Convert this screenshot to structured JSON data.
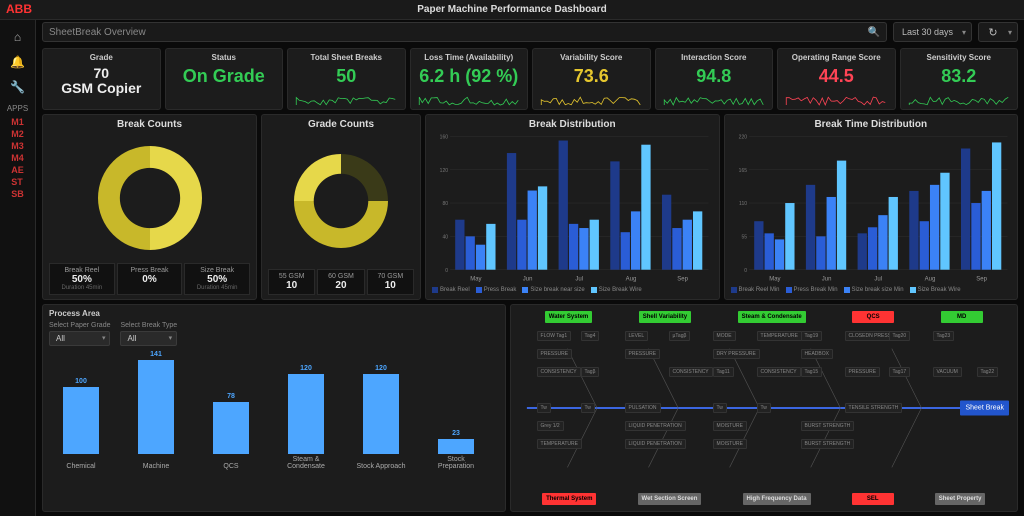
{
  "app": {
    "logo": "ABB",
    "title": "Paper Machine Performance Dashboard",
    "search_text": "SheetBreak Overview",
    "date_range": "Last 30 days",
    "refresh_icon": "↻"
  },
  "sidebar": {
    "icons": [
      {
        "name": "home-icon",
        "glyph": "⌂"
      },
      {
        "name": "bell-icon",
        "glyph": "🔔"
      },
      {
        "name": "wrench-icon",
        "glyph": "🔧"
      }
    ],
    "apps_label": "APPS",
    "apps": [
      "M1",
      "M2",
      "M3",
      "M4",
      "AE",
      "ST",
      "SB"
    ]
  },
  "kpis": [
    {
      "title": "Grade",
      "value": "70 GSM Copier",
      "color": "#eeeeee",
      "spark": null,
      "big": false
    },
    {
      "title": "Status",
      "value": "On Grade",
      "color": "#33cc55",
      "spark": null,
      "big": true
    },
    {
      "title": "Total Sheet Breaks",
      "value": "50",
      "color": "#33cc55",
      "spark": {
        "color": "#33cc55"
      },
      "big": true
    },
    {
      "title": "Loss Time (Availability)",
      "value": "6.2 h (92 %)",
      "color": "#33cc55",
      "spark": {
        "color": "#33cc55"
      },
      "big": true
    },
    {
      "title": "Variability Score",
      "value": "73.6",
      "color": "#e6c72e",
      "spark": {
        "color": "#e6c72e"
      },
      "big": true
    },
    {
      "title": "Interaction Score",
      "value": "94.8",
      "color": "#33cc55",
      "spark": {
        "color": "#33cc55"
      },
      "big": true
    },
    {
      "title": "Operating Range Score",
      "value": "44.5",
      "color": "#ff4455",
      "spark": {
        "color": "#ff4455"
      },
      "big": true
    },
    {
      "title": "Sensitivity Score",
      "value": "83.2",
      "color": "#33cc55",
      "spark": {
        "color": "#33cc55"
      },
      "big": true
    }
  ],
  "break_counts": {
    "title": "Break Counts",
    "donut": {
      "segments": [
        {
          "label": "Break Reel",
          "value": 50,
          "color": "#e6d84a"
        },
        {
          "label": "Press Break",
          "value": 0,
          "color": "#5a5a2a"
        },
        {
          "label": "Size Break",
          "value": 50,
          "color": "#c8b82a"
        }
      ],
      "inner_ratio": 0.58
    },
    "legend": [
      {
        "lbl": "Break Reel",
        "val": "50%",
        "sub": "Duration 45min"
      },
      {
        "lbl": "Press Break",
        "val": "0%",
        "sub": ""
      },
      {
        "lbl": "Size Break",
        "val": "50%",
        "sub": "Duration 45min"
      }
    ]
  },
  "grade_counts": {
    "title": "Grade Counts",
    "donut": {
      "segments": [
        {
          "label": "55 GSM",
          "value": 10,
          "color": "#3a3a18"
        },
        {
          "label": "60 GSM",
          "value": 20,
          "color": "#c8b82a"
        },
        {
          "label": "70 GSM",
          "value": 10,
          "color": "#e6d84a"
        }
      ],
      "inner_ratio": 0.58
    },
    "legend": [
      {
        "lbl": "55 GSM",
        "val": "10",
        "sub": ""
      },
      {
        "lbl": "60 GSM",
        "val": "20",
        "sub": ""
      },
      {
        "lbl": "70 GSM",
        "val": "10",
        "sub": ""
      }
    ]
  },
  "break_dist": {
    "title": "Break Distribution",
    "categories": [
      "May",
      "Jun",
      "Jul",
      "Aug",
      "Sep"
    ],
    "series_colors": [
      "#1e3a8a",
      "#2a5dd6",
      "#3b82f6",
      "#60c6ff"
    ],
    "series_names": [
      "Break Reel",
      "Press Break",
      "Size break near size",
      "Size Break Wire"
    ],
    "ylim": [
      0,
      160
    ],
    "data": [
      [
        60,
        40,
        30,
        55
      ],
      [
        140,
        60,
        95,
        100
      ],
      [
        155,
        55,
        50,
        60
      ],
      [
        130,
        45,
        70,
        150
      ],
      [
        90,
        50,
        60,
        70
      ]
    ]
  },
  "break_time_dist": {
    "title": "Break Time Distribution",
    "categories": [
      "May",
      "Jun",
      "Jul",
      "Aug",
      "Sep"
    ],
    "series_colors": [
      "#1e3a8a",
      "#2a5dd6",
      "#3b82f6",
      "#60c6ff"
    ],
    "series_names": [
      "Break Reel Min",
      "Press Break Min",
      "Size break size Min",
      "Size Break Wire"
    ],
    "ylim": [
      0,
      220
    ],
    "data": [
      [
        80,
        60,
        50,
        110
      ],
      [
        140,
        55,
        120,
        180
      ],
      [
        60,
        70,
        90,
        120
      ],
      [
        130,
        80,
        140,
        160
      ],
      [
        200,
        110,
        130,
        210
      ]
    ]
  },
  "process_area": {
    "title": "Process Area",
    "filters": [
      {
        "label": "Select Paper Grade",
        "value": "All"
      },
      {
        "label": "Select Break Type",
        "value": "All"
      }
    ],
    "chart": {
      "color": "#4da6ff",
      "categories": [
        "Chemical",
        "Machine",
        "QCS",
        "Steam & Condensate",
        "Stock Approach",
        "Stock Preparation"
      ],
      "values": [
        100,
        141,
        78,
        120,
        120,
        23
      ],
      "ylim": [
        0,
        150
      ]
    }
  },
  "fishbone": {
    "top_heads": [
      {
        "label": "Water System",
        "color": "#33cc33"
      },
      {
        "label": "Shell Variability",
        "color": "#33cc33"
      },
      {
        "label": "Steam & Condensate",
        "color": "#33cc33"
      },
      {
        "label": "QCS",
        "color": "#ff3333"
      },
      {
        "label": "MD",
        "color": "#33cc33"
      }
    ],
    "bottom_heads": [
      {
        "label": "Thermal System",
        "color": "#ff3333"
      },
      {
        "label": "Wet Section Screen",
        "color": "#666666"
      },
      {
        "label": "High Frequency Data",
        "color": "#666666"
      },
      {
        "label": "SEL",
        "color": "#ff3333"
      },
      {
        "label": "Sheet Property",
        "color": "#666666"
      }
    ],
    "spine_color": "#3b66e0",
    "output": "Sheet Break",
    "nodes_top": [
      [
        "FLOW Tag1",
        "Tag4",
        "LEVEL",
        "µTagβ",
        "MODE",
        "TEMPERATURE",
        "Tag19",
        "CLOSEDN PRESS",
        "Tag20",
        "Tag23"
      ],
      [
        "PRESSURE",
        "",
        "PRESSURE",
        "",
        "DRY PRESSURE",
        "",
        "HEADBOX",
        ""
      ],
      [
        "CONSISTENCY",
        "Tagβ",
        "",
        "CONSISTENCY",
        "Tag11",
        "CONSISTENCY",
        "Tag15",
        "PRESSURE",
        "Tag17",
        "VACUUM",
        "Tag22"
      ]
    ],
    "nodes_bottom": [
      [
        "Tw",
        "Tw",
        "PULSATION",
        "",
        "Tw",
        "Tw",
        "",
        "TENSILE STRENGTH"
      ],
      [
        "Grey 1/2",
        "",
        "LIQUID PENETRATION",
        "",
        "MOISTURE",
        "",
        "BURST STRENGTH"
      ],
      [
        "TEMPERATURE",
        "",
        "LIQUID PENETRATION",
        "",
        "MOISTURE",
        "",
        "BURST STRENGTH"
      ]
    ]
  },
  "colors": {
    "bg": "#0a0a0a",
    "panel": "#1c1c1c",
    "border": "#2a2a2a"
  }
}
